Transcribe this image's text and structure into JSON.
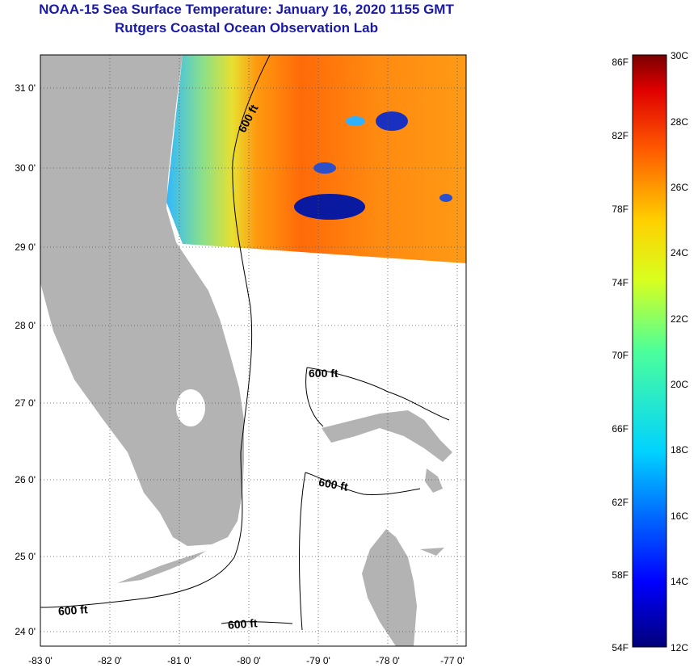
{
  "title": "NOAA-15 Sea Surface Temperature:  January 16, 2020 1155 GMT",
  "subtitle": "Rutgers Coastal Ocean Observation Lab",
  "lat_labels": [
    "31 0'",
    "30 0'",
    "29 0'",
    "28 0'",
    "27 0'",
    "26 0'",
    "25 0'",
    "24 0'"
  ],
  "lon_labels": [
    "-83 0'",
    "-82 0'",
    "-81 0'",
    "-80 0'",
    "-79 0'",
    "-78 0'",
    "-77 0'"
  ],
  "contour_label": "600 ft",
  "colorbar": {
    "f_labels": [
      "86F",
      "82F",
      "78F",
      "74F",
      "70F",
      "66F",
      "62F",
      "58F",
      "54F"
    ],
    "c_labels": [
      "30C",
      "28C",
      "26C",
      "24C",
      "22C",
      "20C",
      "18C",
      "16C",
      "14C",
      "12C"
    ],
    "range_c": [
      12,
      30
    ]
  },
  "colors": {
    "land": "#b3b3b3",
    "title": "#1a1aa8"
  }
}
